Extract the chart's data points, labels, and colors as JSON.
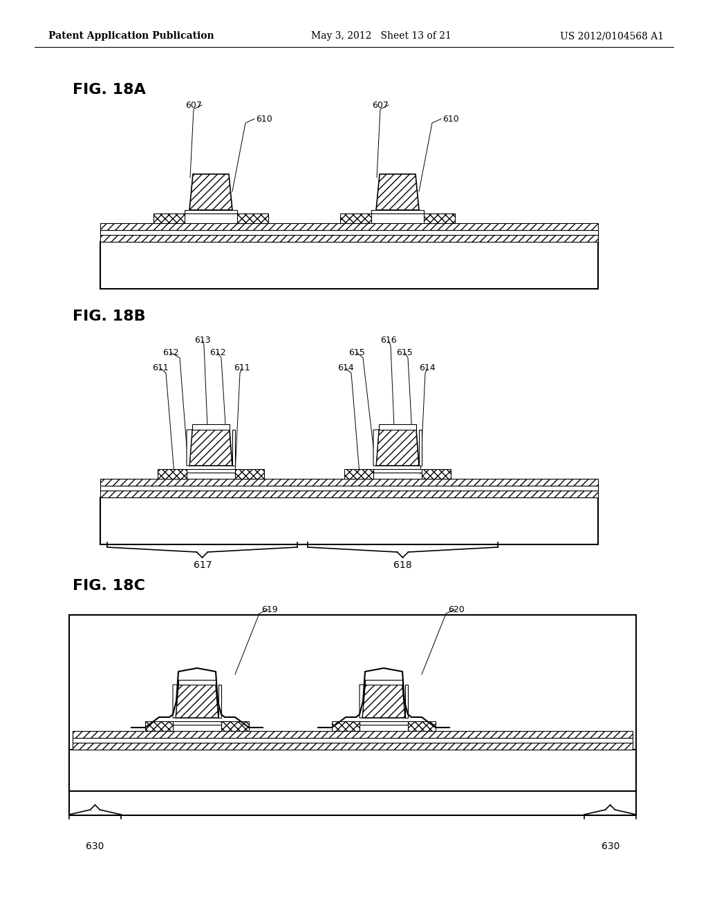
{
  "bg_color": "#ffffff",
  "header_left": "Patent Application Publication",
  "header_mid": "May 3, 2012   Sheet 13 of 21",
  "header_right": "US 2012/0104568 A1",
  "fig_labels": [
    "FIG. 18A",
    "FIG. 18B",
    "FIG. 18C"
  ],
  "label_fontsize": 16,
  "ann_fs": 9,
  "header_fontsize": 10
}
